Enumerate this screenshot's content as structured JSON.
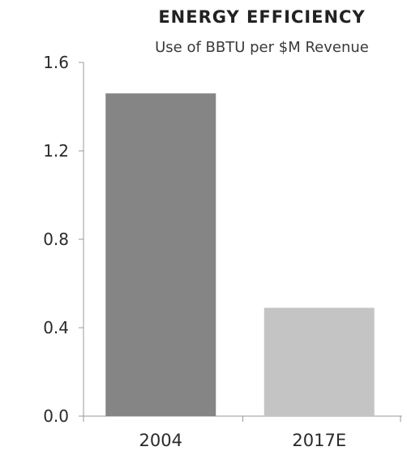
{
  "chart_data": {
    "type": "bar",
    "title": "ENERGY EFFICIENCY",
    "subtitle": "Use of BBTU per $M Revenue",
    "categories": [
      "2004",
      "2017E"
    ],
    "values": [
      1.46,
      0.49
    ],
    "bar_colors": [
      "#858585",
      "#c4c4c4"
    ],
    "ylim": [
      0,
      1.6
    ],
    "yticks": [
      "0.0",
      "0.4",
      "0.8",
      "1.2",
      "1.6"
    ],
    "grid": false,
    "xlabel": "",
    "ylabel": ""
  }
}
